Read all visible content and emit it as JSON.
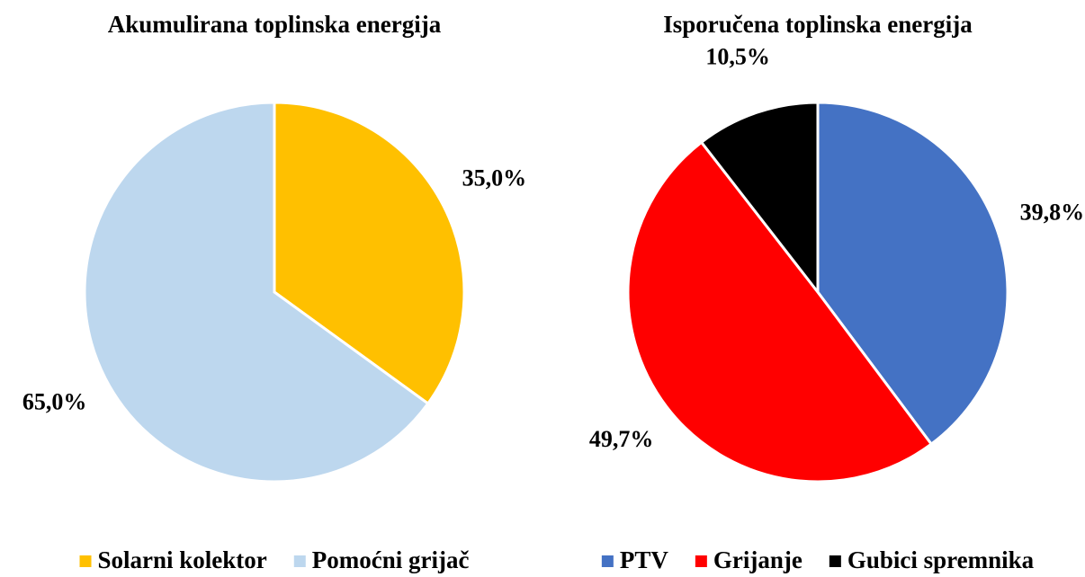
{
  "chart_data": [
    {
      "type": "pie",
      "title": "Akumulirana toplinska energija",
      "categories": [
        "Solarni kolektor",
        "Pomoćni grijač"
      ],
      "values": [
        35.0,
        65.0
      ],
      "value_labels": [
        "35,0%",
        "65,0%"
      ],
      "colors": [
        "#ffc000",
        "#bdd7ee"
      ]
    },
    {
      "type": "pie",
      "title": "Isporučena toplinska energija",
      "categories": [
        "PTV",
        "Grijanje",
        "Gubici spremnika"
      ],
      "values": [
        39.8,
        49.7,
        10.5
      ],
      "value_labels": [
        "39,8%",
        "49,7%",
        "10,5%"
      ],
      "colors": [
        "#4472c4",
        "#ff0000",
        "#000000"
      ]
    }
  ]
}
